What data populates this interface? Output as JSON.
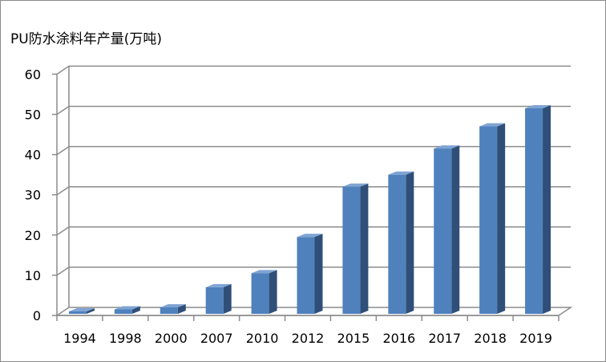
{
  "chart_data": {
    "type": "bar",
    "title": "",
    "xlabel": "",
    "ylabel": "PU防水涂料年产量(万吨)",
    "categories": [
      "1994",
      "1998",
      "2000",
      "2007",
      "2010",
      "2012",
      "2015",
      "2016",
      "2017",
      "2018",
      "2019"
    ],
    "values": [
      1,
      1.5,
      2,
      7,
      10.5,
      19.5,
      32,
      35,
      41.5,
      47,
      51.5
    ],
    "ylim": [
      0,
      60
    ],
    "yticks": [
      "0",
      "10",
      "20",
      "30",
      "40",
      "50",
      "60"
    ],
    "grid": true,
    "legend": "none",
    "style": "3d-column",
    "colors": {
      "bar_front": "#4f81bd",
      "bar_side": "#2f4f79",
      "bar_top": "#7fa4d4",
      "gridline": "#8c8c8c"
    }
  }
}
